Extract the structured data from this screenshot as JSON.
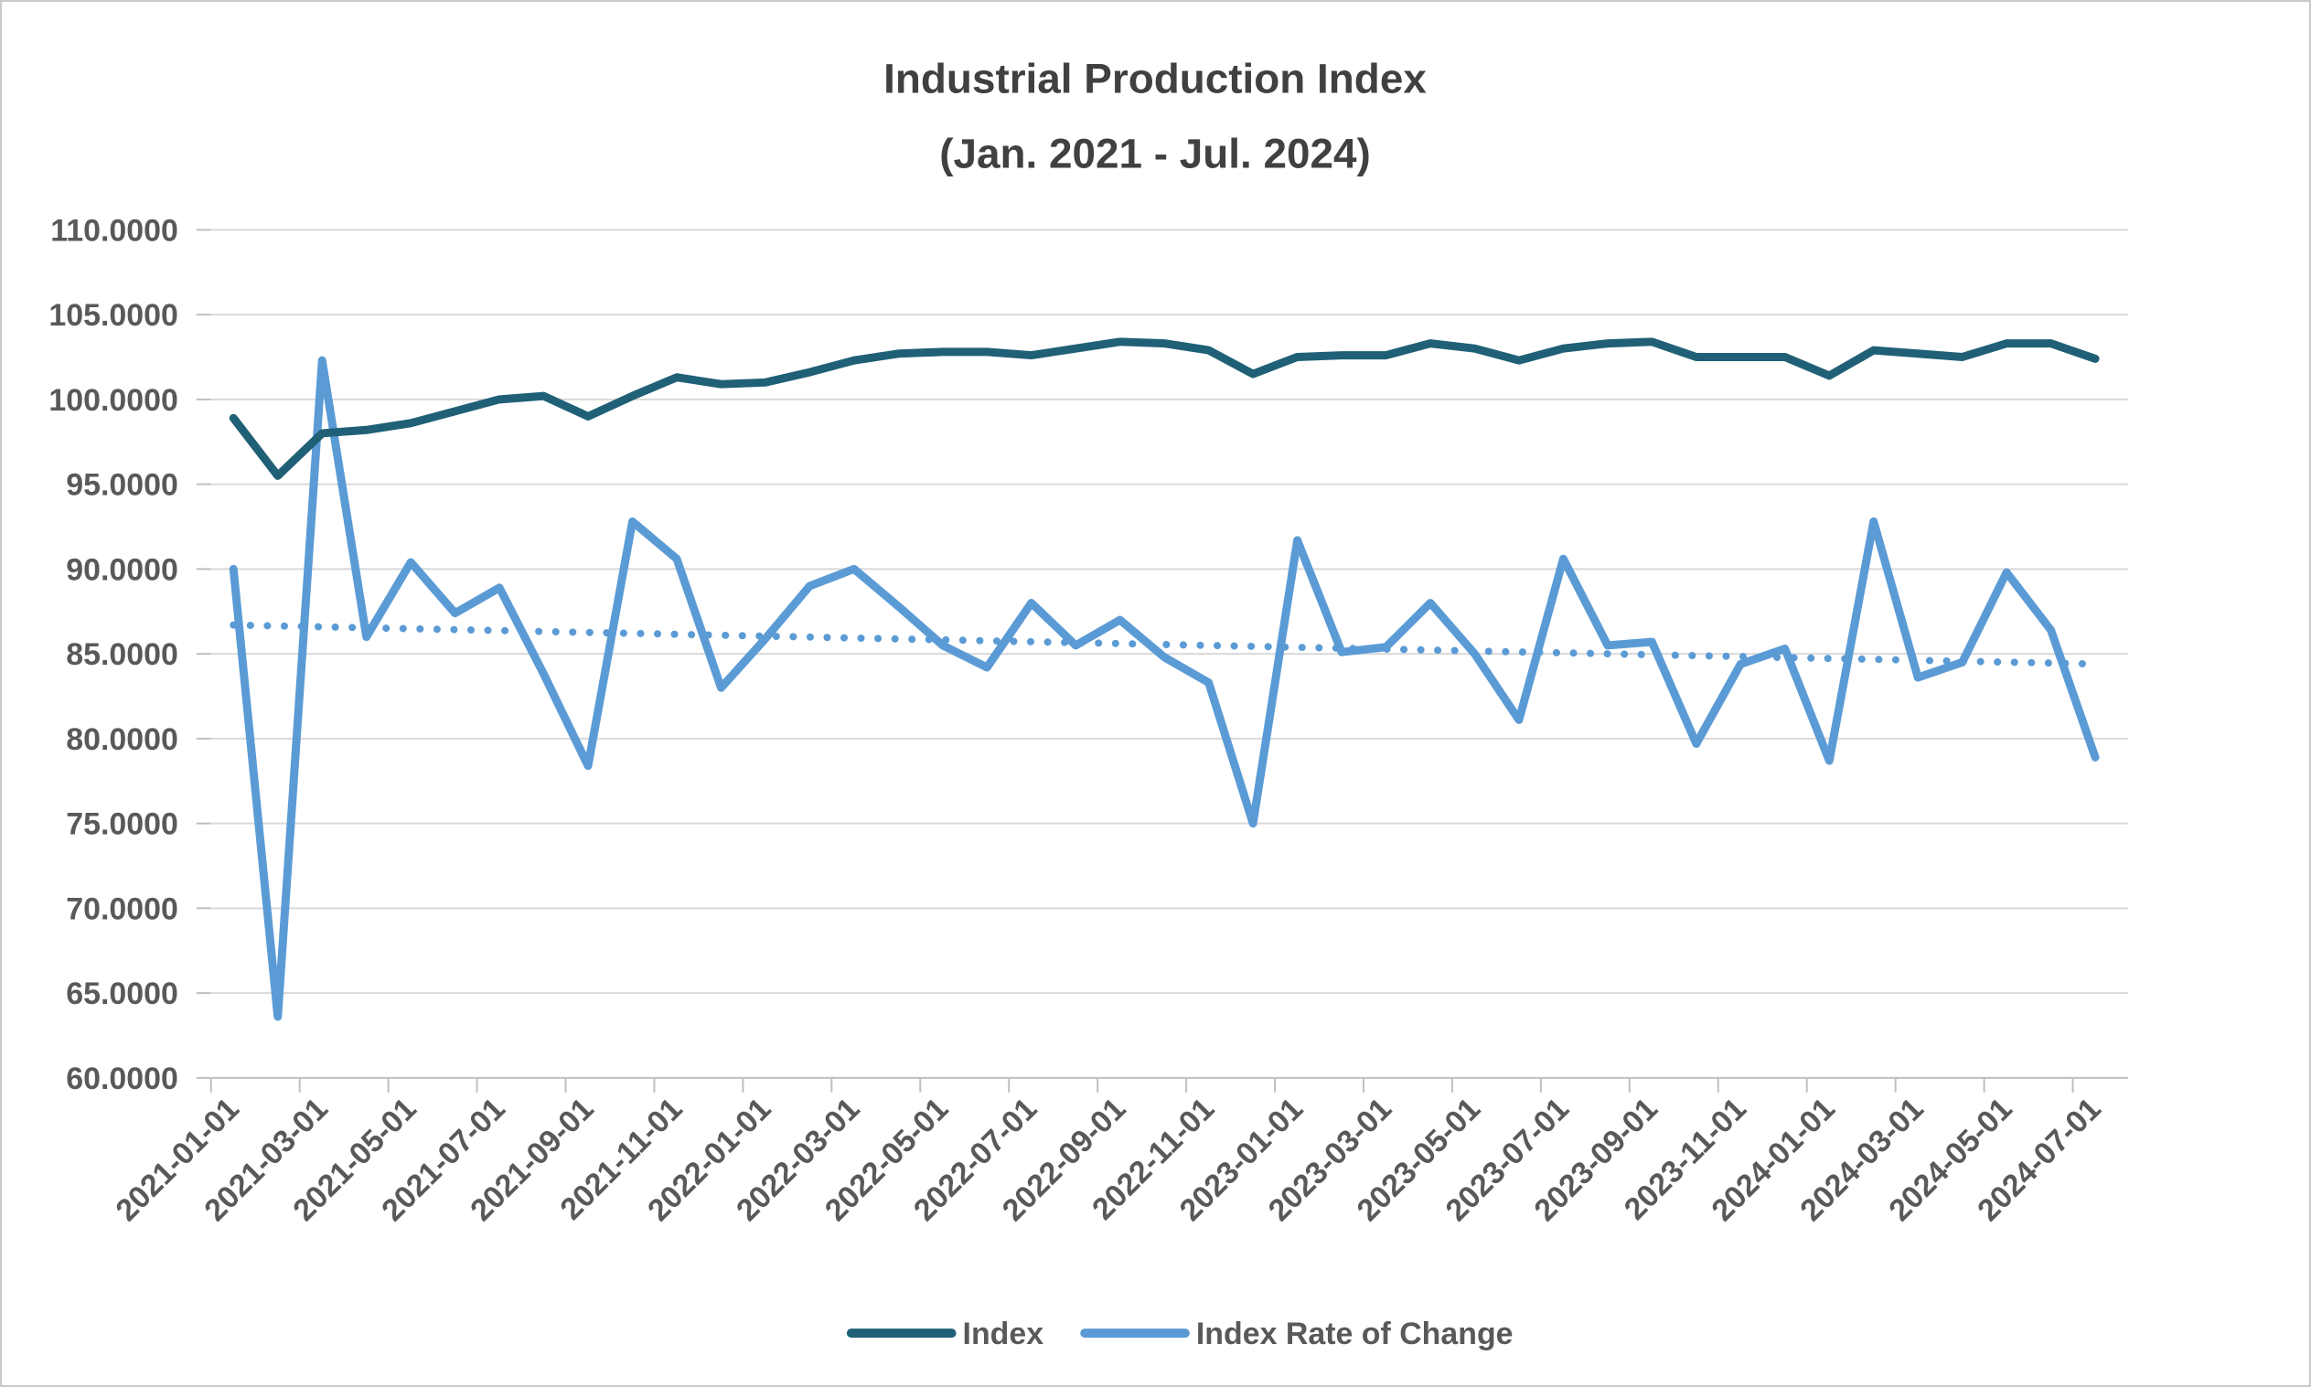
{
  "chart_data": {
    "type": "line",
    "title": "Industrial Production Index",
    "subtitle": "(Jan. 2021 - Jul. 2024)",
    "categories": [
      "2021-01-01",
      "2021-02-01",
      "2021-03-01",
      "2021-04-01",
      "2021-05-01",
      "2021-06-01",
      "2021-07-01",
      "2021-08-01",
      "2021-09-01",
      "2021-10-01",
      "2021-11-01",
      "2021-12-01",
      "2022-01-01",
      "2022-02-01",
      "2022-03-01",
      "2022-04-01",
      "2022-05-01",
      "2022-06-01",
      "2022-07-01",
      "2022-08-01",
      "2022-09-01",
      "2022-10-01",
      "2022-11-01",
      "2022-12-01",
      "2023-01-01",
      "2023-02-01",
      "2023-03-01",
      "2023-04-01",
      "2023-05-01",
      "2023-06-01",
      "2023-07-01",
      "2023-08-01",
      "2023-09-01",
      "2023-10-01",
      "2023-11-01",
      "2023-12-01",
      "2024-01-01",
      "2024-02-01",
      "2024-03-01",
      "2024-04-01",
      "2024-05-01",
      "2024-06-01",
      "2024-07-01"
    ],
    "series": [
      {
        "name": "Index",
        "color": "#206077",
        "values": [
          98.9,
          95.5,
          98.0,
          98.2,
          98.6,
          99.3,
          100.0,
          100.2,
          99.0,
          100.2,
          101.3,
          100.9,
          101.0,
          101.6,
          102.3,
          102.7,
          102.8,
          102.8,
          102.6,
          103.0,
          103.4,
          103.3,
          102.9,
          101.5,
          102.5,
          102.6,
          102.6,
          103.3,
          103.0,
          102.3,
          103.0,
          103.3,
          103.4,
          102.5,
          102.5,
          102.5,
          101.4,
          102.9,
          102.7,
          102.5,
          103.3,
          103.3,
          102.4
        ]
      },
      {
        "name": "Index Rate of Change",
        "color": "#5B9BD5",
        "values": [
          90.0,
          63.6,
          102.3,
          86.0,
          90.4,
          87.4,
          88.9,
          83.8,
          78.4,
          92.8,
          90.6,
          83.0,
          85.9,
          89.0,
          90.0,
          87.8,
          85.5,
          84.2,
          88.0,
          85.5,
          87.0,
          84.8,
          83.3,
          75.0,
          91.7,
          85.1,
          85.4,
          88.0,
          85.0,
          81.1,
          90.6,
          85.5,
          85.7,
          79.7,
          84.4,
          85.3,
          78.7,
          92.8,
          83.6,
          84.5,
          89.8,
          86.4,
          78.9
        ]
      }
    ],
    "trendline": {
      "applies_to": "Index Rate of Change",
      "style": "dotted",
      "color": "#5B9BD5",
      "start_value": 86.7,
      "end_value": 84.4
    },
    "y_axis": {
      "min": 60,
      "max": 110,
      "step": 5,
      "tick_labels": [
        "110.0000",
        "105.0000",
        "100.0000",
        "95.0000",
        "90.0000",
        "85.0000",
        "80.0000",
        "75.0000",
        "70.0000",
        "65.0000",
        "60.0000"
      ]
    },
    "x_axis": {
      "tick_every_n_months": 2,
      "label_rotation_deg": -45,
      "tick_labels": [
        "2021-01-01",
        "2021-03-01",
        "2021-05-01",
        "2021-07-01",
        "2021-09-01",
        "2021-11-01",
        "2022-01-01",
        "2022-03-01",
        "2022-05-01",
        "2022-07-01",
        "2022-09-01",
        "2022-11-01",
        "2023-01-01",
        "2023-03-01",
        "2023-05-01",
        "2023-07-01",
        "2023-09-01",
        "2023-11-01",
        "2024-01-01",
        "2024-03-01",
        "2024-05-01",
        "2024-07-01"
      ]
    },
    "grid": "horizontal",
    "legend_position": "bottom"
  },
  "legend": {
    "items": [
      {
        "label": "Index",
        "color": "#206077"
      },
      {
        "label": "Index Rate of Change",
        "color": "#5B9BD5"
      }
    ]
  },
  "colors": {
    "background": "#FFFFFF",
    "outer_border": "#C9C9C9",
    "gridline": "#D9D9D9",
    "axis_line": "#BFBFBF",
    "axis_text": "#595959",
    "title_text": "#404040",
    "index_line": "#206077",
    "rate_line": "#5B9BD5"
  }
}
